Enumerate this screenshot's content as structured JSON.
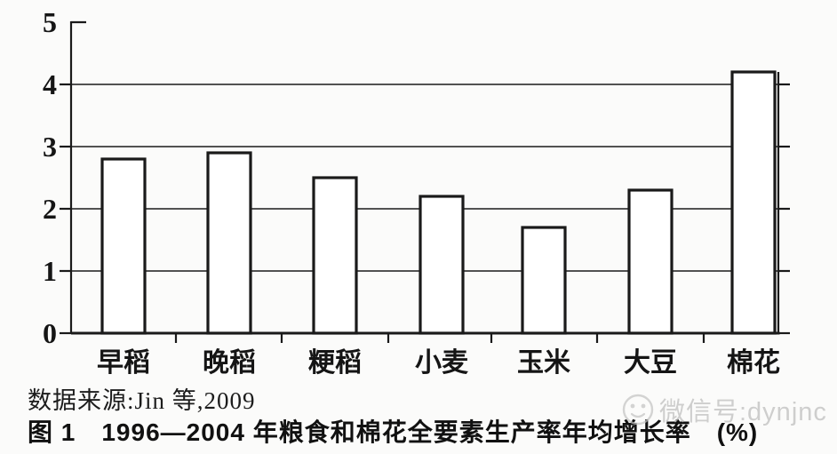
{
  "figure": {
    "source_note": "数据来源:Jin 等,2009",
    "caption": "图 1　1996—2004 年粮食和棉花全要素生产率年均增长率　(%)",
    "watermark": {
      "icon": "wechat-face-icon",
      "text": "微信号:dynjnc",
      "color": "#bdbdbd"
    }
  },
  "chart_data": {
    "type": "bar",
    "categories": [
      "早稻",
      "晚稻",
      "粳稻",
      "小麦",
      "玉米",
      "大豆",
      "棉花"
    ],
    "values": [
      2.8,
      2.9,
      2.5,
      2.2,
      1.7,
      2.3,
      4.2
    ],
    "title": "1996—2004 年粮食和棉花全要素生产率年均增长率 (%)",
    "xlabel": "",
    "ylabel": "",
    "ylim": [
      0,
      5
    ],
    "yticks": [
      0,
      1,
      2,
      3,
      4,
      5
    ],
    "gridlines_at": [
      1,
      2,
      3,
      4
    ],
    "legend": "none",
    "bar_fill": "#ffffff",
    "bar_stroke": "#1a1a1a",
    "source": "Jin 等, 2009"
  }
}
